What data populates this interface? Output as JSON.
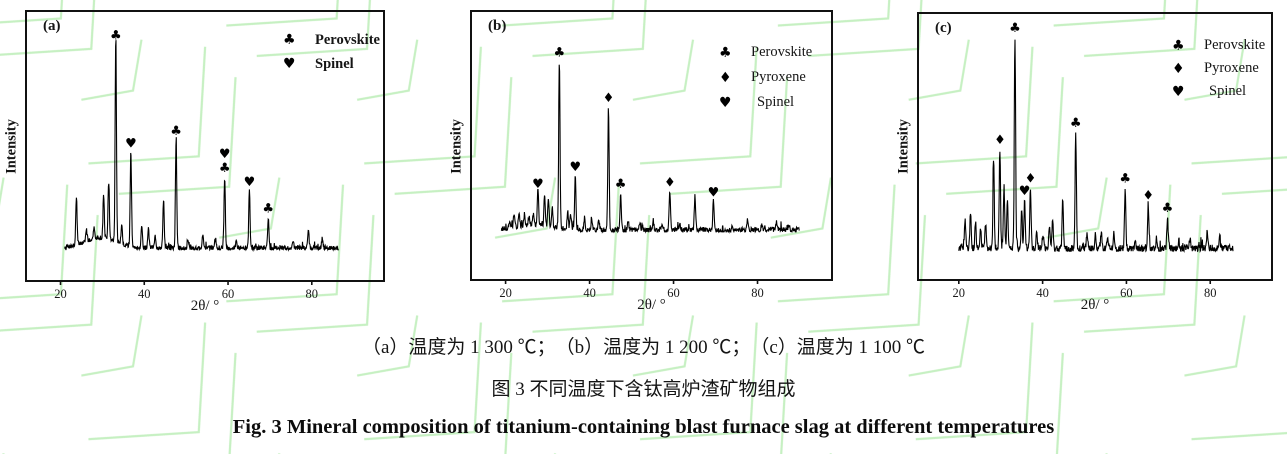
{
  "caption": {
    "line1": "（a）温度为 1 300 ℃；　（b）温度为 1 200 ℃；　（c）温度为 1 100 ℃",
    "line2": "图 3  不同温度下含钛高炉渣矿物组成",
    "line3": "Fig. 3 Mineral composition of titanium-containing blast furnace slag at different temperatures"
  },
  "colors": {
    "watermark": "#c6f0c2",
    "trace": "#000000",
    "frame": "#111111"
  },
  "chart_data": [
    {
      "type": "line",
      "panel_label": "(a)",
      "xlabel": "2θ/ °",
      "ylabel": "Intensity",
      "x_ticks": [
        20,
        40,
        60,
        80
      ],
      "x_range": [
        12,
        97
      ],
      "data_range": [
        21,
        86.5
      ],
      "grid": false,
      "legend_position": "top-right",
      "legend": [
        {
          "symbol": "♣",
          "name": "Perovskite"
        },
        {
          "symbol": "♥",
          "name": "Spinel"
        }
      ],
      "line_color": "#000000",
      "baseline_frac": 0.115,
      "max_peak_frac": 0.76,
      "noise": 0.013,
      "seed": 7,
      "humps": [
        {
          "x": 29.5,
          "w": 5.5,
          "h": 0.05
        }
      ],
      "peaks": [
        {
          "x": 23.8,
          "h": 0.23
        },
        {
          "x": 26.2,
          "h": 0.05
        },
        {
          "x": 28.0,
          "h": 0.05
        },
        {
          "x": 30.3,
          "h": 0.21
        },
        {
          "x": 31.5,
          "h": 0.27
        },
        {
          "x": 33.2,
          "h": 1.0,
          "markers": [
            "♣"
          ]
        },
        {
          "x": 34.6,
          "h": 0.09
        },
        {
          "x": 36.8,
          "h": 0.47,
          "markers": [
            "♥"
          ]
        },
        {
          "x": 39.4,
          "h": 0.11
        },
        {
          "x": 41.0,
          "h": 0.09
        },
        {
          "x": 42.6,
          "h": 0.06
        },
        {
          "x": 44.6,
          "h": 0.24
        },
        {
          "x": 47.6,
          "h": 0.53,
          "markers": [
            "♣"
          ]
        },
        {
          "x": 50.5,
          "h": 0.04
        },
        {
          "x": 54.0,
          "h": 0.07
        },
        {
          "x": 57.0,
          "h": 0.05
        },
        {
          "x": 59.2,
          "h": 0.35,
          "markers": [
            "♣",
            "♥"
          ]
        },
        {
          "x": 62.0,
          "h": 0.04
        },
        {
          "x": 65.1,
          "h": 0.28,
          "markers": [
            "♥"
          ]
        },
        {
          "x": 69.6,
          "h": 0.15,
          "markers": [
            "♣"
          ]
        },
        {
          "x": 75.5,
          "h": 0.04
        },
        {
          "x": 79.2,
          "h": 0.08
        },
        {
          "x": 82.5,
          "h": 0.05
        }
      ]
    },
    {
      "type": "line",
      "panel_label": "(b)",
      "xlabel": "2θ/ °",
      "ylabel": "Intensity",
      "x_ticks": [
        20,
        40,
        60,
        80
      ],
      "x_range": [
        12,
        97.5
      ],
      "data_range": [
        19,
        90
      ],
      "grid": false,
      "legend_position": "top-right",
      "legend": [
        {
          "symbol": "♣",
          "name": "Perovskite"
        },
        {
          "symbol": "♦",
          "name": "Pyroxene"
        },
        {
          "symbol": "♥",
          "name": "Spinel"
        }
      ],
      "line_color": "#000000",
      "baseline_frac": 0.18,
      "max_peak_frac": 0.63,
      "noise": 0.017,
      "seed": 13,
      "humps": [
        {
          "x": 27,
          "w": 6,
          "h": 0.03
        }
      ],
      "peaks": [
        {
          "x": 21.0,
          "h": 0.05
        },
        {
          "x": 22.0,
          "h": 0.08
        },
        {
          "x": 23.2,
          "h": 0.09
        },
        {
          "x": 24.5,
          "h": 0.07
        },
        {
          "x": 25.6,
          "h": 0.06
        },
        {
          "x": 26.6,
          "h": 0.06
        },
        {
          "x": 27.7,
          "h": 0.22,
          "markers": [
            "♥"
          ]
        },
        {
          "x": 29.3,
          "h": 0.19
        },
        {
          "x": 30.2,
          "h": 0.17
        },
        {
          "x": 31.1,
          "h": 0.12
        },
        {
          "x": 32.8,
          "h": 1.0,
          "markers": [
            "♣"
          ]
        },
        {
          "x": 34.8,
          "h": 0.1
        },
        {
          "x": 35.5,
          "h": 0.09
        },
        {
          "x": 36.6,
          "h": 0.32,
          "markers": [
            "♥"
          ]
        },
        {
          "x": 38.8,
          "h": 0.07
        },
        {
          "x": 40.5,
          "h": 0.07
        },
        {
          "x": 42.2,
          "h": 0.06
        },
        {
          "x": 44.5,
          "h": 0.73,
          "markers": [
            "♦"
          ]
        },
        {
          "x": 47.4,
          "h": 0.22,
          "markers": [
            "♣"
          ]
        },
        {
          "x": 49.2,
          "h": 0.05
        },
        {
          "x": 52.0,
          "h": 0.04
        },
        {
          "x": 55.2,
          "h": 0.04
        },
        {
          "x": 57.3,
          "h": 0.04
        },
        {
          "x": 59.1,
          "h": 0.23,
          "markers": [
            "♦"
          ]
        },
        {
          "x": 61.5,
          "h": 0.04
        },
        {
          "x": 65.1,
          "h": 0.2
        },
        {
          "x": 69.5,
          "h": 0.17,
          "markers": [
            "♥"
          ]
        },
        {
          "x": 74.0,
          "h": 0.03
        },
        {
          "x": 77.6,
          "h": 0.06
        },
        {
          "x": 81.0,
          "h": 0.03
        },
        {
          "x": 84.5,
          "h": 0.03
        },
        {
          "x": 87.5,
          "h": 0.03
        }
      ]
    },
    {
      "type": "line",
      "panel_label": "(c)",
      "xlabel": "2θ/ °",
      "ylabel": "Intensity",
      "x_ticks": [
        20,
        40,
        60,
        80
      ],
      "x_range": [
        10.5,
        94.5
      ],
      "data_range": [
        20,
        85.5
      ],
      "grid": false,
      "legend_position": "top-right",
      "legend": [
        {
          "symbol": "♣",
          "name": "Perovskite"
        },
        {
          "symbol": "♦",
          "name": "Pyroxene"
        },
        {
          "symbol": "♥",
          "name": "Spinel"
        }
      ],
      "line_color": "#000000",
      "baseline_frac": 0.11,
      "max_peak_frac": 0.8,
      "noise": 0.019,
      "seed": 29,
      "humps": [],
      "peaks": [
        {
          "x": 21.5,
          "h": 0.13
        },
        {
          "x": 22.8,
          "h": 0.17
        },
        {
          "x": 24.0,
          "h": 0.12
        },
        {
          "x": 25.2,
          "h": 0.1
        },
        {
          "x": 26.4,
          "h": 0.12
        },
        {
          "x": 28.3,
          "h": 0.43
        },
        {
          "x": 29.8,
          "h": 0.47,
          "markers": [
            "♦"
          ]
        },
        {
          "x": 30.8,
          "h": 0.29
        },
        {
          "x": 31.6,
          "h": 0.22
        },
        {
          "x": 33.4,
          "h": 1.0,
          "markers": [
            "♣"
          ]
        },
        {
          "x": 35.0,
          "h": 0.18
        },
        {
          "x": 35.7,
          "h": 0.23,
          "markers": [
            "♥"
          ]
        },
        {
          "x": 37.1,
          "h": 0.29,
          "markers": [
            "♦"
          ]
        },
        {
          "x": 38.6,
          "h": 0.08
        },
        {
          "x": 40.1,
          "h": 0.07
        },
        {
          "x": 41.6,
          "h": 0.11
        },
        {
          "x": 42.4,
          "h": 0.13
        },
        {
          "x": 44.8,
          "h": 0.22
        },
        {
          "x": 47.9,
          "h": 0.55,
          "markers": [
            "♣"
          ]
        },
        {
          "x": 50.6,
          "h": 0.08
        },
        {
          "x": 52.6,
          "h": 0.07
        },
        {
          "x": 54.0,
          "h": 0.07
        },
        {
          "x": 55.5,
          "h": 0.06
        },
        {
          "x": 57.0,
          "h": 0.06
        },
        {
          "x": 59.7,
          "h": 0.29,
          "markers": [
            "♣"
          ]
        },
        {
          "x": 62.1,
          "h": 0.05
        },
        {
          "x": 65.2,
          "h": 0.21,
          "markers": [
            "♦"
          ]
        },
        {
          "x": 67.2,
          "h": 0.05
        },
        {
          "x": 69.8,
          "h": 0.15,
          "markers": [
            "♣"
          ]
        },
        {
          "x": 72.5,
          "h": 0.04
        },
        {
          "x": 75.2,
          "h": 0.05
        },
        {
          "x": 79.3,
          "h": 0.08
        },
        {
          "x": 82.2,
          "h": 0.04
        }
      ]
    }
  ]
}
